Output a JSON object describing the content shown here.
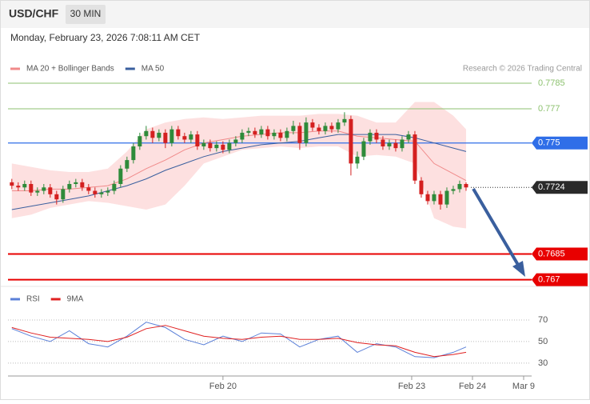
{
  "header": {
    "symbol": "USD/CHF",
    "interval": "30 MIN",
    "datetime": "Monday, February 23, 2026 7:08:11 AM CET",
    "copyright": "Research © 2026 Trading Central"
  },
  "chart_data": [
    {
      "type": "candlestick",
      "up_color": "#2e8b3a",
      "down_color": "#d42020",
      "xlim": [
        -0.6,
        81.25
      ],
      "ylim": [
        0.7667,
        0.7807
      ],
      "candles": [
        [
          0.7727,
          0.7729,
          0.7723,
          0.7725
        ],
        [
          0.7725,
          0.7727,
          0.7722,
          0.7724
        ],
        [
          0.7724,
          0.7728,
          0.7722,
          0.7726
        ],
        [
          0.7726,
          0.7728,
          0.7719,
          0.7721
        ],
        [
          0.7721,
          0.7724,
          0.7719,
          0.7722
        ],
        [
          0.7722,
          0.7726,
          0.772,
          0.7724
        ],
        [
          0.7724,
          0.7726,
          0.7718,
          0.772
        ],
        [
          0.772,
          0.7722,
          0.7714,
          0.7717
        ],
        [
          0.7717,
          0.7725,
          0.7715,
          0.7723
        ],
        [
          0.7723,
          0.7728,
          0.7721,
          0.7726
        ],
        [
          0.7726,
          0.7729,
          0.7724,
          0.7727
        ],
        [
          0.7727,
          0.7729,
          0.7722,
          0.7724
        ],
        [
          0.7724,
          0.7726,
          0.772,
          0.7722
        ],
        [
          0.7722,
          0.7724,
          0.7718,
          0.772
        ],
        [
          0.772,
          0.7723,
          0.7718,
          0.7721
        ],
        [
          0.7721,
          0.7724,
          0.7719,
          0.7722
        ],
        [
          0.7722,
          0.7728,
          0.772,
          0.7726
        ],
        [
          0.7726,
          0.7737,
          0.7724,
          0.7735
        ],
        [
          0.7735,
          0.7742,
          0.7733,
          0.774
        ],
        [
          0.774,
          0.775,
          0.7738,
          0.7748
        ],
        [
          0.7748,
          0.7756,
          0.7746,
          0.7754
        ],
        [
          0.7754,
          0.776,
          0.7752,
          0.7757
        ],
        [
          0.7757,
          0.7759,
          0.775,
          0.7753
        ],
        [
          0.7753,
          0.7758,
          0.7751,
          0.7756
        ],
        [
          0.7756,
          0.7758,
          0.7747,
          0.775
        ],
        [
          0.775,
          0.776,
          0.7748,
          0.7758
        ],
        [
          0.7758,
          0.776,
          0.7752,
          0.7754
        ],
        [
          0.7754,
          0.7756,
          0.775,
          0.7752
        ],
        [
          0.7752,
          0.7757,
          0.775,
          0.7755
        ],
        [
          0.7755,
          0.7757,
          0.7746,
          0.7748
        ],
        [
          0.7748,
          0.7752,
          0.7746,
          0.775
        ],
        [
          0.775,
          0.7752,
          0.7745,
          0.7747
        ],
        [
          0.7747,
          0.7751,
          0.7745,
          0.7749
        ],
        [
          0.7749,
          0.7751,
          0.7744,
          0.7746
        ],
        [
          0.7746,
          0.7752,
          0.7744,
          0.775
        ],
        [
          0.775,
          0.7754,
          0.7748,
          0.7752
        ],
        [
          0.7752,
          0.7758,
          0.775,
          0.7756
        ],
        [
          0.7756,
          0.7759,
          0.7754,
          0.7757
        ],
        [
          0.7757,
          0.7759,
          0.7753,
          0.7755
        ],
        [
          0.7755,
          0.776,
          0.7753,
          0.7758
        ],
        [
          0.7758,
          0.776,
          0.7752,
          0.7754
        ],
        [
          0.7754,
          0.7758,
          0.7752,
          0.7756
        ],
        [
          0.7756,
          0.7758,
          0.7751,
          0.7753
        ],
        [
          0.7753,
          0.7759,
          0.7751,
          0.7757
        ],
        [
          0.7757,
          0.7763,
          0.7755,
          0.776
        ],
        [
          0.776,
          0.7762,
          0.7746,
          0.775
        ],
        [
          0.775,
          0.7765,
          0.7748,
          0.7762
        ],
        [
          0.7762,
          0.7764,
          0.7757,
          0.7759
        ],
        [
          0.7759,
          0.7761,
          0.7755,
          0.7757
        ],
        [
          0.7757,
          0.7762,
          0.7755,
          0.776
        ],
        [
          0.776,
          0.7762,
          0.7756,
          0.7758
        ],
        [
          0.7758,
          0.7764,
          0.7756,
          0.7762
        ],
        [
          0.7762,
          0.7768,
          0.776,
          0.7764
        ],
        [
          0.7764,
          0.7766,
          0.7731,
          0.7738
        ],
        [
          0.7738,
          0.7745,
          0.7735,
          0.7742
        ],
        [
          0.7742,
          0.7753,
          0.774,
          0.7751
        ],
        [
          0.7751,
          0.7758,
          0.7749,
          0.7756
        ],
        [
          0.7756,
          0.7758,
          0.775,
          0.7752
        ],
        [
          0.7752,
          0.7754,
          0.7746,
          0.7748
        ],
        [
          0.7748,
          0.7752,
          0.7746,
          0.775
        ],
        [
          0.775,
          0.7752,
          0.7745,
          0.7747
        ],
        [
          0.7747,
          0.7754,
          0.7745,
          0.7752
        ],
        [
          0.7752,
          0.7757,
          0.775,
          0.7755
        ],
        [
          0.7755,
          0.7757,
          0.7726,
          0.7728
        ],
        [
          0.7728,
          0.773,
          0.7718,
          0.772
        ],
        [
          0.772,
          0.7722,
          0.7714,
          0.7716
        ],
        [
          0.7716,
          0.7722,
          0.7714,
          0.772
        ],
        [
          0.772,
          0.7722,
          0.7711,
          0.7714
        ],
        [
          0.7714,
          0.7724,
          0.7712,
          0.7722
        ],
        [
          0.7722,
          0.7725,
          0.772,
          0.7723
        ],
        [
          0.7723,
          0.7728,
          0.7721,
          0.7726
        ],
        [
          0.7726,
          0.7727,
          0.7722,
          0.7724
        ]
      ],
      "overlay_x": [
        0,
        3,
        6,
        9,
        12,
        15,
        18,
        21,
        24,
        27,
        30,
        33,
        36,
        39,
        42,
        45,
        48,
        51,
        54,
        57,
        60,
        63,
        66,
        69,
        71
      ],
      "series": [
        {
          "name": "MA 20 + Bollinger Bands",
          "color": "#f08a8a",
          "band_color": "#fde0e0",
          "values": [
            0.7722,
            0.7722,
            0.7723,
            0.7723,
            0.7724,
            0.7725,
            0.7729,
            0.7735,
            0.774,
            0.7746,
            0.775,
            0.7752,
            0.7754,
            0.7755,
            0.7756,
            0.7756,
            0.7757,
            0.7757,
            0.7754,
            0.7753,
            0.7752,
            0.7751,
            0.7738,
            0.7732,
            0.7728
          ],
          "upper": [
            0.7738,
            0.7736,
            0.7734,
            0.7733,
            0.7733,
            0.7735,
            0.7745,
            0.7758,
            0.7762,
            0.7764,
            0.7765,
            0.7764,
            0.7765,
            0.7766,
            0.7766,
            0.7766,
            0.7767,
            0.7767,
            0.7766,
            0.7762,
            0.7762,
            0.7774,
            0.7774,
            0.7766,
            0.7758
          ],
          "lower": [
            0.7706,
            0.7708,
            0.7712,
            0.7714,
            0.7716,
            0.7715,
            0.7713,
            0.7711,
            0.7714,
            0.7725,
            0.7738,
            0.7742,
            0.7746,
            0.7747,
            0.7748,
            0.7747,
            0.7748,
            0.7748,
            0.7742,
            0.7743,
            0.7742,
            0.7738,
            0.7706,
            0.7701,
            0.77
          ]
        },
        {
          "name": "MA 50",
          "color": "#3a5f9e",
          "values": [
            0.7711,
            0.7713,
            0.7715,
            0.7717,
            0.7719,
            0.7722,
            0.7725,
            0.7729,
            0.7734,
            0.7738,
            0.7742,
            0.7745,
            0.7747,
            0.7749,
            0.775,
            0.7751,
            0.7753,
            0.7755,
            0.7755,
            0.7755,
            0.7755,
            0.7753,
            0.775,
            0.7747,
            0.7745
          ]
        }
      ],
      "levels": [
        {
          "value": 0.7785,
          "color": "#8dc26f",
          "box": false,
          "line_style": "solid"
        },
        {
          "value": 0.777,
          "color": "#8dc26f",
          "box": false,
          "line_style": "solid"
        },
        {
          "value": 0.775,
          "color": "#2f6ee8",
          "box": true,
          "line_style": "solid"
        },
        {
          "value": 0.7724,
          "color": "#2a2a2a",
          "box": true,
          "line_style": "dotted"
        },
        {
          "value": 0.7685,
          "color": "#e80000",
          "box": true,
          "line_style": "solid"
        },
        {
          "value": 0.767,
          "color": "#e80000",
          "box": true,
          "line_style": "solid"
        }
      ]
    },
    {
      "type": "line",
      "xlim": [
        -0.6,
        81.25
      ],
      "ylim": [
        18,
        96
      ],
      "yticks": [
        30,
        50,
        70
      ],
      "xticks": [
        {
          "value": 33,
          "label": "Feb 20"
        },
        {
          "value": 62.5,
          "label": "Feb 23"
        },
        {
          "value": 72,
          "label": "Feb 24"
        },
        {
          "value": 80,
          "label": "Mar 9"
        }
      ],
      "x": [
        0,
        3,
        6,
        9,
        12,
        15,
        18,
        21,
        24,
        27,
        30,
        33,
        36,
        39,
        42,
        45,
        48,
        51,
        54,
        57,
        60,
        63,
        66,
        69,
        71
      ],
      "series": [
        {
          "name": "RSI",
          "color": "#5b80d8",
          "values": [
            62,
            55,
            50,
            60,
            48,
            45,
            55,
            68,
            63,
            52,
            47,
            55,
            50,
            58,
            57,
            45,
            52,
            55,
            40,
            48,
            45,
            36,
            35,
            40,
            45
          ]
        },
        {
          "name": "9MA",
          "color": "#e02020",
          "values": [
            63,
            58,
            54,
            53,
            52,
            50,
            54,
            62,
            65,
            60,
            55,
            53,
            52,
            54,
            55,
            52,
            52,
            53,
            49,
            47,
            46,
            40,
            36,
            38,
            40
          ]
        }
      ]
    }
  ]
}
